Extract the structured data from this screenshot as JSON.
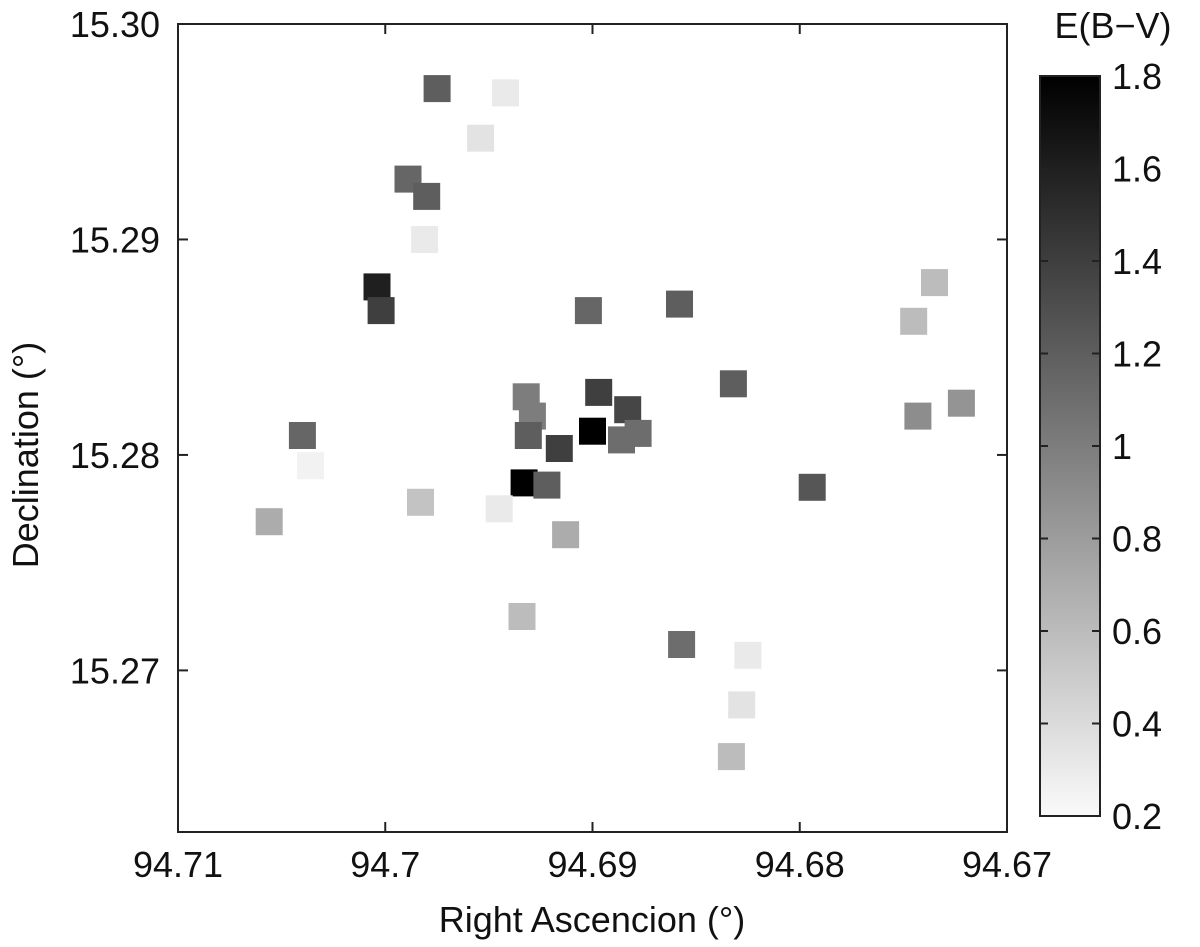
{
  "chart_data": {
    "type": "scatter",
    "title": "",
    "xlabel": "Right Ascencion  (°)",
    "ylabel": "Declination  (°)",
    "xlim": [
      94.71,
      94.67
    ],
    "ylim": [
      15.2625,
      15.3
    ],
    "x_reversed": true,
    "x_ticks": [
      "94.71",
      "94.7",
      "94.69",
      "94.68",
      "94.67"
    ],
    "y_ticks": [
      "15.27",
      "15.28",
      "15.29",
      "15.30"
    ],
    "grid": false,
    "colorbar": {
      "label": "E(B−V)",
      "range": [
        0.2,
        1.8
      ],
      "ticks": [
        "0.2",
        "0.4",
        "0.6",
        "0.8",
        "1",
        "1.2",
        "1.4",
        "1.6",
        "1.8"
      ],
      "colormap": "white-to-black"
    },
    "points": [
      {
        "ra": 94.6975,
        "dec": 15.297,
        "ebv": 1.2
      },
      {
        "ra": 94.6942,
        "dec": 15.2968,
        "ebv": 0.3
      },
      {
        "ra": 94.6954,
        "dec": 15.2947,
        "ebv": 0.35
      },
      {
        "ra": 94.6989,
        "dec": 15.2928,
        "ebv": 1.15
      },
      {
        "ra": 94.698,
        "dec": 15.292,
        "ebv": 1.2
      },
      {
        "ra": 94.6981,
        "dec": 15.29,
        "ebv": 0.3
      },
      {
        "ra": 94.7004,
        "dec": 15.2878,
        "ebv": 1.6
      },
      {
        "ra": 94.7002,
        "dec": 15.2867,
        "ebv": 1.4
      },
      {
        "ra": 94.6902,
        "dec": 15.2867,
        "ebv": 1.15
      },
      {
        "ra": 94.6858,
        "dec": 15.287,
        "ebv": 1.2
      },
      {
        "ra": 94.6832,
        "dec": 15.2833,
        "ebv": 1.2
      },
      {
        "ra": 94.6735,
        "dec": 15.288,
        "ebv": 0.6
      },
      {
        "ra": 94.6745,
        "dec": 15.2862,
        "ebv": 0.6
      },
      {
        "ra": 94.6932,
        "dec": 15.2827,
        "ebv": 1.0
      },
      {
        "ra": 94.6929,
        "dec": 15.2818,
        "ebv": 1.0
      },
      {
        "ra": 94.6931,
        "dec": 15.2809,
        "ebv": 1.2
      },
      {
        "ra": 94.6897,
        "dec": 15.2829,
        "ebv": 1.4
      },
      {
        "ra": 94.69,
        "dec": 15.2811,
        "ebv": 1.8
      },
      {
        "ra": 94.6883,
        "dec": 15.2821,
        "ebv": 1.35
      },
      {
        "ra": 94.6886,
        "dec": 15.2807,
        "ebv": 1.1
      },
      {
        "ra": 94.6878,
        "dec": 15.281,
        "ebv": 1.1
      },
      {
        "ra": 94.6916,
        "dec": 15.2803,
        "ebv": 1.4
      },
      {
        "ra": 94.6933,
        "dec": 15.2787,
        "ebv": 1.8
      },
      {
        "ra": 94.6922,
        "dec": 15.2786,
        "ebv": 1.2
      },
      {
        "ra": 94.6913,
        "dec": 15.2763,
        "ebv": 0.7
      },
      {
        "ra": 94.6945,
        "dec": 15.2775,
        "ebv": 0.3
      },
      {
        "ra": 94.6983,
        "dec": 15.2778,
        "ebv": 0.55
      },
      {
        "ra": 94.7036,
        "dec": 15.2795,
        "ebv": 0.25
      },
      {
        "ra": 94.704,
        "dec": 15.2809,
        "ebv": 1.15
      },
      {
        "ra": 94.7056,
        "dec": 15.2769,
        "ebv": 0.7
      },
      {
        "ra": 94.6934,
        "dec": 15.2725,
        "ebv": 0.6
      },
      {
        "ra": 94.6857,
        "dec": 15.2712,
        "ebv": 1.1
      },
      {
        "ra": 94.6825,
        "dec": 15.2707,
        "ebv": 0.3
      },
      {
        "ra": 94.6828,
        "dec": 15.2684,
        "ebv": 0.35
      },
      {
        "ra": 94.6833,
        "dec": 15.266,
        "ebv": 0.6
      },
      {
        "ra": 94.6794,
        "dec": 15.2785,
        "ebv": 1.25
      },
      {
        "ra": 94.6743,
        "dec": 15.2818,
        "ebv": 0.9
      },
      {
        "ra": 94.6722,
        "dec": 15.2824,
        "ebv": 0.85
      }
    ]
  }
}
